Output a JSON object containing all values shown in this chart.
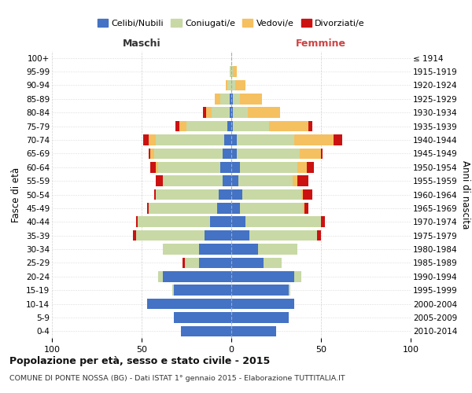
{
  "age_groups": [
    "0-4",
    "5-9",
    "10-14",
    "15-19",
    "20-24",
    "25-29",
    "30-34",
    "35-39",
    "40-44",
    "45-49",
    "50-54",
    "55-59",
    "60-64",
    "65-69",
    "70-74",
    "75-79",
    "80-84",
    "85-89",
    "90-94",
    "95-99",
    "100+"
  ],
  "birth_years": [
    "2010-2014",
    "2005-2009",
    "2000-2004",
    "1995-1999",
    "1990-1994",
    "1985-1989",
    "1980-1984",
    "1975-1979",
    "1970-1974",
    "1965-1969",
    "1960-1964",
    "1955-1959",
    "1950-1954",
    "1945-1949",
    "1940-1944",
    "1935-1939",
    "1930-1934",
    "1925-1929",
    "1920-1924",
    "1915-1919",
    "≤ 1914"
  ],
  "maschi": {
    "celibi": [
      28,
      32,
      47,
      32,
      38,
      18,
      18,
      15,
      12,
      8,
      7,
      5,
      6,
      5,
      4,
      2,
      1,
      1,
      0,
      0,
      0
    ],
    "coniugati": [
      0,
      0,
      0,
      1,
      3,
      8,
      20,
      38,
      40,
      38,
      35,
      33,
      35,
      38,
      38,
      23,
      10,
      5,
      2,
      1,
      0
    ],
    "vedovi": [
      0,
      0,
      0,
      0,
      0,
      0,
      0,
      0,
      0,
      0,
      0,
      0,
      1,
      2,
      4,
      4,
      3,
      3,
      1,
      0,
      0
    ],
    "divorziati": [
      0,
      0,
      0,
      0,
      0,
      1,
      0,
      2,
      1,
      1,
      1,
      4,
      3,
      1,
      3,
      2,
      2,
      0,
      0,
      0,
      0
    ]
  },
  "femmine": {
    "nubili": [
      25,
      32,
      35,
      32,
      35,
      18,
      15,
      10,
      8,
      5,
      6,
      4,
      5,
      3,
      3,
      1,
      1,
      1,
      0,
      0,
      0
    ],
    "coniugate": [
      0,
      0,
      0,
      1,
      4,
      10,
      22,
      38,
      42,
      35,
      33,
      30,
      32,
      35,
      32,
      20,
      8,
      4,
      2,
      1,
      0
    ],
    "vedove": [
      0,
      0,
      0,
      0,
      0,
      0,
      0,
      0,
      0,
      1,
      1,
      3,
      5,
      12,
      22,
      22,
      18,
      12,
      6,
      2,
      0
    ],
    "divorziate": [
      0,
      0,
      0,
      0,
      0,
      0,
      0,
      2,
      2,
      2,
      5,
      6,
      4,
      1,
      5,
      2,
      0,
      0,
      0,
      0,
      0
    ]
  },
  "colors": {
    "celibi": "#4472c4",
    "coniugati": "#c8d9a5",
    "vedovi": "#f5c060",
    "divorziati": "#cc1111"
  },
  "xlim": 100,
  "title1": "Popolazione per età, sesso e stato civile - 2015",
  "title2": "COMUNE DI PONTE NOSSA (BG) - Dati ISTAT 1° gennaio 2015 - Elaborazione TUTTITALIA.IT",
  "ylabel_left": "Fasce di età",
  "ylabel_right": "Anni di nascita",
  "xlabel_left": "Maschi",
  "xlabel_right": "Femmine",
  "bg_color": "#ffffff",
  "grid_color": "#cccccc"
}
